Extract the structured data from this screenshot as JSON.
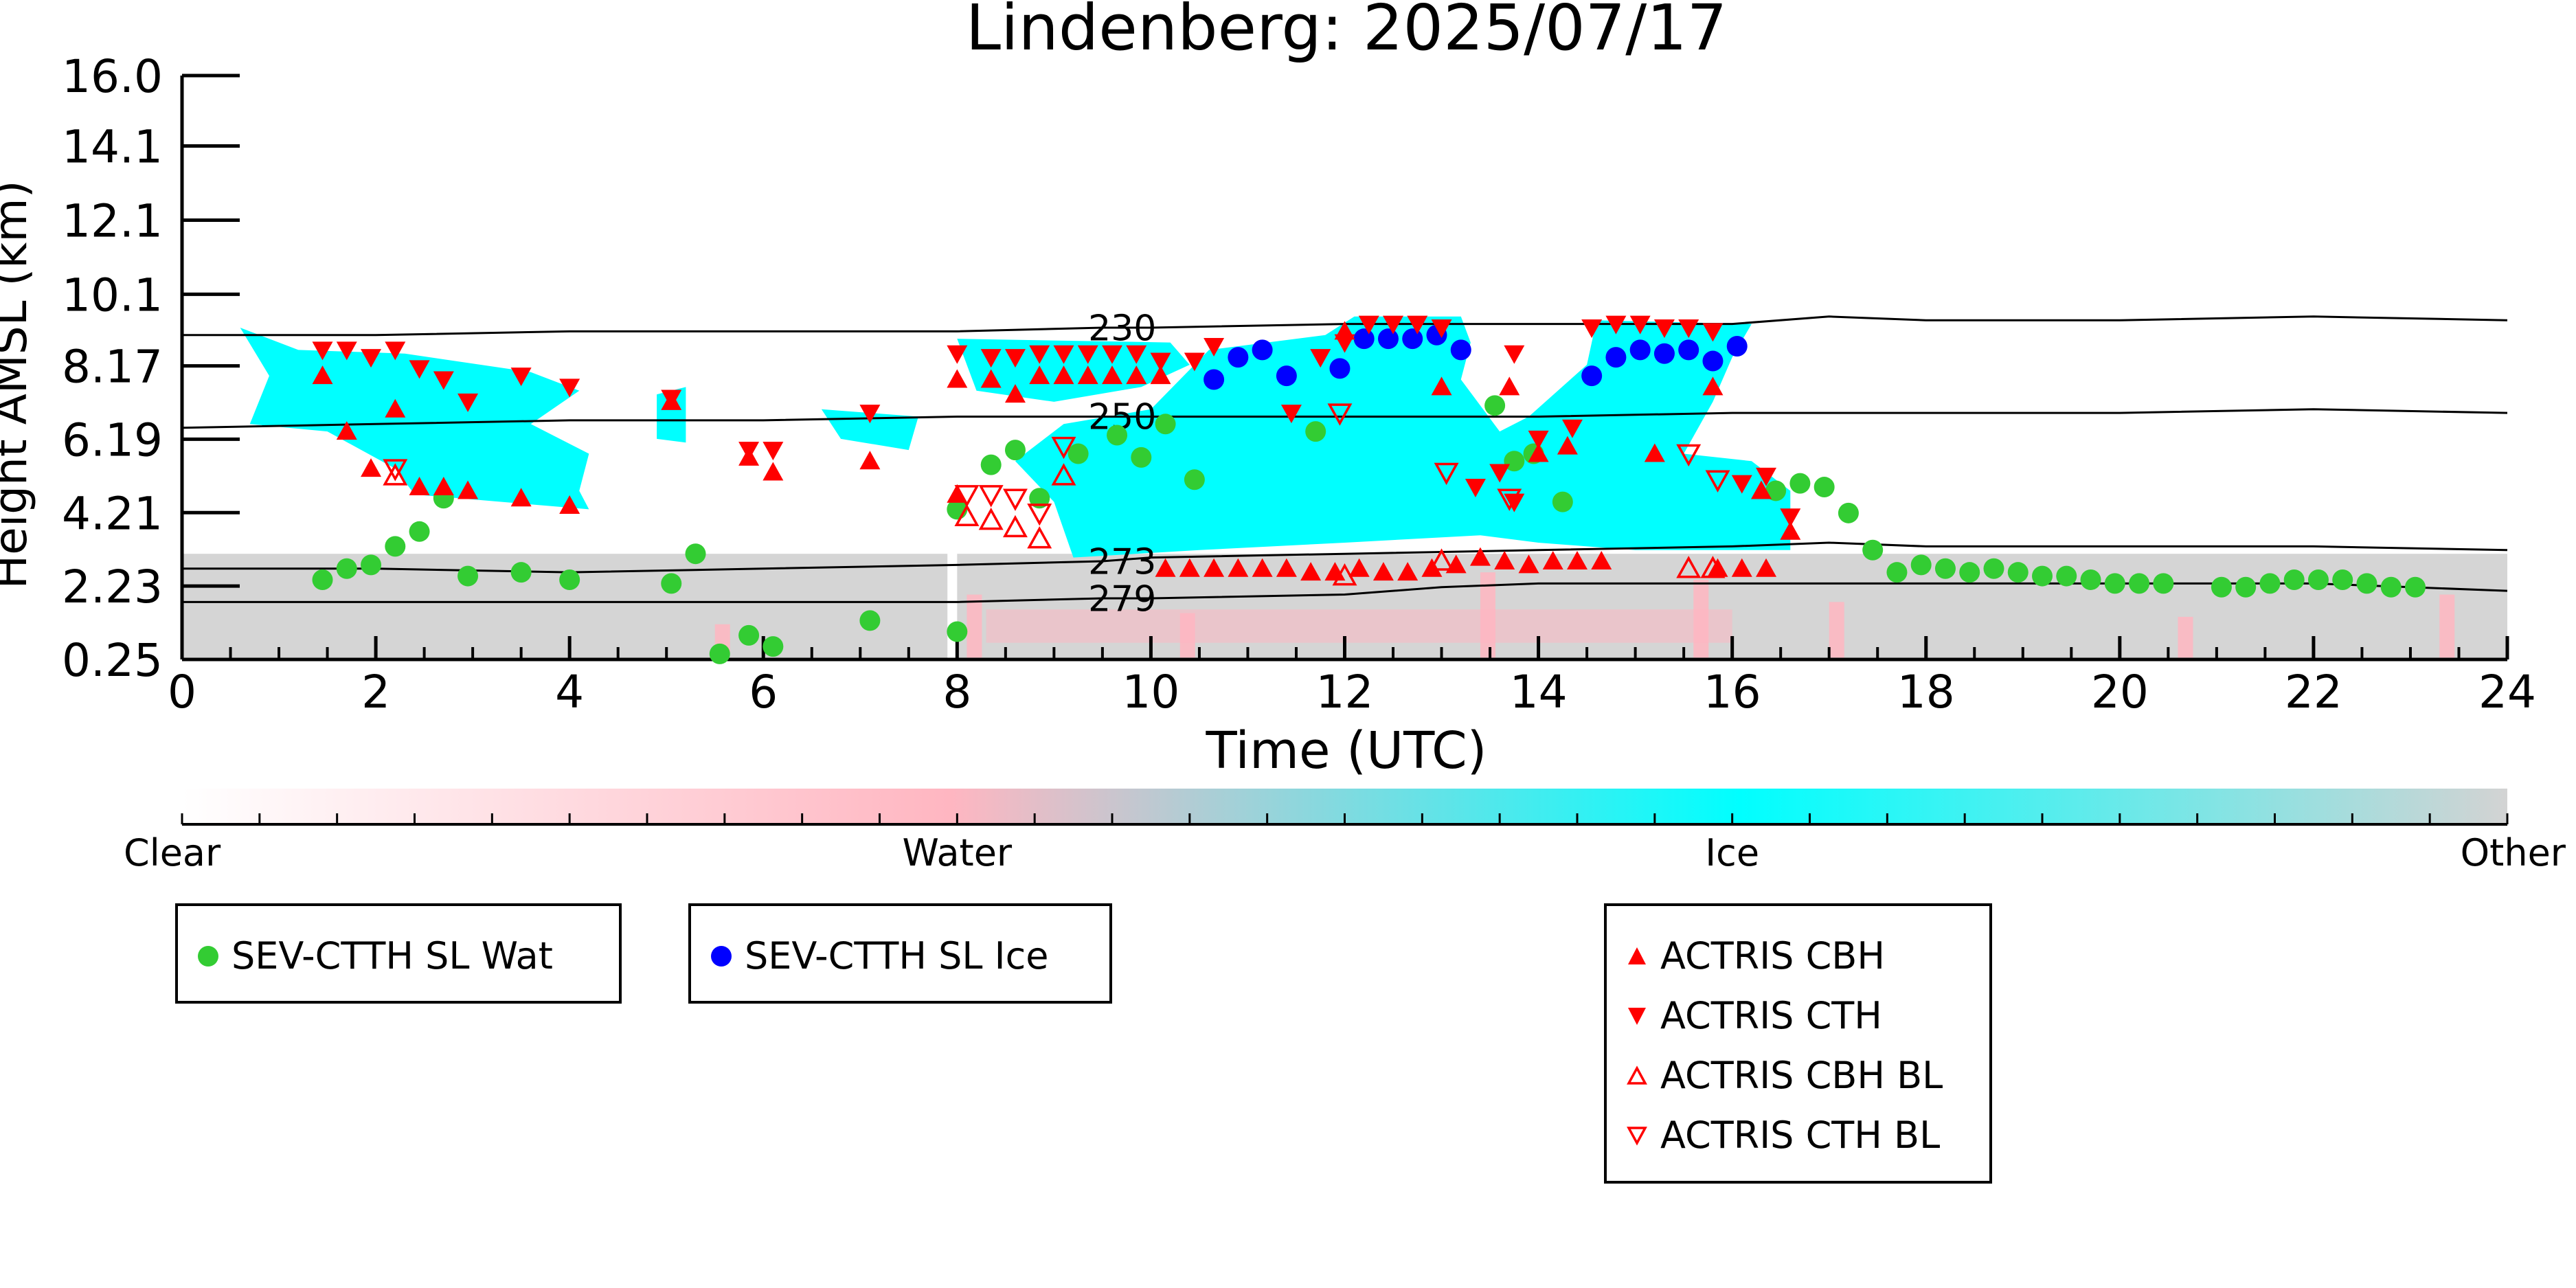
{
  "chart_data": {
    "type": "scatter",
    "title": "Lindenberg: 2025/07/17",
    "xlabel": "Time (UTC)",
    "ylabel": "Height AMSL (km)",
    "xlim": [
      0,
      24
    ],
    "ylim": [
      0.25,
      16.0
    ],
    "x_ticks": [
      "0",
      "2",
      "4",
      "6",
      "8",
      "10",
      "12",
      "14",
      "16",
      "18",
      "20",
      "22",
      "24"
    ],
    "y_ticks": [
      "0.25",
      "2.23",
      "4.21",
      "6.19",
      "8.17",
      "10.1",
      "12.1",
      "14.1",
      "16.0"
    ],
    "colorbar": {
      "labels": [
        "Clear",
        "Water",
        "Ice",
        "Other"
      ],
      "colors": [
        "#ffffff",
        "#ffb6c1",
        "#00ffff",
        "#d3d3d3"
      ]
    },
    "isotherms": [
      {
        "label": "230",
        "x": [
          0,
          2,
          4,
          6,
          8,
          9.5,
          10,
          12,
          14,
          16,
          17,
          18,
          20,
          22,
          24
        ],
        "y": [
          9.0,
          9.0,
          9.1,
          9.1,
          9.1,
          9.2,
          9.2,
          9.3,
          9.3,
          9.3,
          9.5,
          9.4,
          9.4,
          9.5,
          9.4
        ]
      },
      {
        "label": "250",
        "x": [
          0,
          2,
          4,
          6,
          8,
          9.5,
          10,
          12,
          14,
          16,
          18,
          20,
          22,
          24
        ],
        "y": [
          6.5,
          6.6,
          6.7,
          6.7,
          6.8,
          6.8,
          6.8,
          6.8,
          6.8,
          6.9,
          6.9,
          6.9,
          7.0,
          6.9
        ]
      },
      {
        "label": "273",
        "x": [
          0,
          2,
          4,
          6,
          8,
          9.5,
          10,
          12,
          14,
          16,
          17,
          18,
          20,
          22,
          24
        ],
        "y": [
          2.7,
          2.7,
          2.6,
          2.7,
          2.8,
          2.9,
          3.0,
          3.1,
          3.2,
          3.3,
          3.4,
          3.3,
          3.3,
          3.3,
          3.2
        ]
      },
      {
        "label": "279",
        "x": [
          0,
          2,
          4,
          6,
          8,
          9.5,
          10,
          12,
          13,
          14,
          16,
          18,
          20,
          22,
          23,
          24
        ],
        "y": [
          1.8,
          1.8,
          1.8,
          1.8,
          1.8,
          1.9,
          1.9,
          2.0,
          2.2,
          2.3,
          2.3,
          2.3,
          2.3,
          2.3,
          2.2,
          2.1
        ]
      }
    ],
    "series": [
      {
        "name": "SEV-CTTH SL Wat",
        "color": "#33cc33",
        "marker": "circle",
        "points": [
          [
            1.45,
            2.4
          ],
          [
            1.7,
            2.7
          ],
          [
            1.95,
            2.8
          ],
          [
            2.2,
            3.3
          ],
          [
            2.45,
            3.7
          ],
          [
            2.7,
            4.6
          ],
          [
            2.95,
            2.5
          ],
          [
            3.5,
            2.6
          ],
          [
            4.0,
            2.4
          ],
          [
            5.05,
            2.3
          ],
          [
            5.3,
            3.1
          ],
          [
            5.55,
            0.4
          ],
          [
            5.85,
            0.9
          ],
          [
            6.1,
            0.6
          ],
          [
            7.1,
            1.3
          ],
          [
            8.0,
            4.3
          ],
          [
            8.0,
            1.0
          ],
          [
            8.35,
            5.5
          ],
          [
            8.6,
            5.9
          ],
          [
            8.85,
            4.6
          ],
          [
            9.25,
            5.8
          ],
          [
            9.65,
            6.3
          ],
          [
            9.9,
            5.7
          ],
          [
            10.15,
            6.6
          ],
          [
            10.45,
            5.1
          ],
          [
            11.7,
            6.4
          ],
          [
            13.55,
            7.1
          ],
          [
            13.75,
            5.6
          ],
          [
            13.95,
            5.8
          ],
          [
            14.25,
            4.5
          ],
          [
            16.45,
            4.8
          ],
          [
            16.7,
            5.0
          ],
          [
            16.95,
            4.9
          ],
          [
            17.2,
            4.2
          ],
          [
            17.45,
            3.2
          ],
          [
            17.7,
            2.6
          ],
          [
            17.95,
            2.8
          ],
          [
            18.2,
            2.7
          ],
          [
            18.45,
            2.6
          ],
          [
            18.7,
            2.7
          ],
          [
            18.95,
            2.6
          ],
          [
            19.2,
            2.5
          ],
          [
            19.45,
            2.5
          ],
          [
            19.7,
            2.4
          ],
          [
            19.95,
            2.3
          ],
          [
            20.2,
            2.3
          ],
          [
            20.45,
            2.3
          ],
          [
            21.05,
            2.2
          ],
          [
            21.3,
            2.2
          ],
          [
            21.55,
            2.3
          ],
          [
            21.8,
            2.4
          ],
          [
            22.05,
            2.4
          ],
          [
            22.3,
            2.4
          ],
          [
            22.55,
            2.3
          ],
          [
            22.8,
            2.2
          ],
          [
            23.05,
            2.2
          ]
        ]
      },
      {
        "name": "SEV-CTTH SL Ice",
        "color": "#0000ff",
        "marker": "circle",
        "points": [
          [
            10.65,
            7.8
          ],
          [
            10.9,
            8.4
          ],
          [
            11.15,
            8.6
          ],
          [
            11.4,
            7.9
          ],
          [
            11.95,
            8.1
          ],
          [
            12.2,
            8.9
          ],
          [
            12.45,
            8.9
          ],
          [
            12.7,
            8.9
          ],
          [
            12.95,
            9.0
          ],
          [
            13.2,
            8.6
          ],
          [
            14.55,
            7.9
          ],
          [
            14.8,
            8.4
          ],
          [
            15.05,
            8.6
          ],
          [
            15.3,
            8.5
          ],
          [
            15.55,
            8.6
          ],
          [
            15.8,
            8.3
          ],
          [
            16.05,
            8.7
          ]
        ]
      },
      {
        "name": "ACTRIS CBH",
        "color": "#ff0000",
        "marker": "triangle-up",
        "filled": true,
        "points": [
          [
            1.45,
            7.9
          ],
          [
            1.7,
            6.4
          ],
          [
            1.95,
            5.4
          ],
          [
            2.2,
            7.0
          ],
          [
            2.45,
            4.9
          ],
          [
            2.7,
            4.9
          ],
          [
            2.95,
            4.8
          ],
          [
            3.5,
            4.6
          ],
          [
            4.0,
            4.4
          ],
          [
            5.05,
            7.2
          ],
          [
            5.85,
            5.7
          ],
          [
            6.1,
            5.3
          ],
          [
            7.1,
            5.6
          ],
          [
            8.0,
            7.8
          ],
          [
            8.0,
            4.7
          ],
          [
            8.35,
            7.8
          ],
          [
            8.6,
            7.4
          ],
          [
            8.85,
            7.9
          ],
          [
            9.1,
            7.9
          ],
          [
            9.35,
            7.9
          ],
          [
            9.6,
            7.9
          ],
          [
            9.85,
            7.9
          ],
          [
            10.1,
            7.9
          ],
          [
            10.15,
            2.7
          ],
          [
            10.4,
            2.7
          ],
          [
            10.65,
            2.7
          ],
          [
            10.9,
            2.7
          ],
          [
            11.15,
            2.7
          ],
          [
            11.4,
            2.7
          ],
          [
            11.65,
            2.6
          ],
          [
            11.9,
            2.6
          ],
          [
            12.15,
            2.7
          ],
          [
            12.4,
            2.6
          ],
          [
            12.65,
            2.6
          ],
          [
            12.9,
            2.7
          ],
          [
            13.15,
            2.8
          ],
          [
            13.4,
            3.0
          ],
          [
            13.65,
            2.9
          ],
          [
            13.9,
            2.8
          ],
          [
            14.15,
            2.9
          ],
          [
            14.4,
            2.9
          ],
          [
            14.65,
            2.9
          ],
          [
            12.0,
            9.1
          ],
          [
            13.0,
            7.6
          ],
          [
            13.7,
            7.6
          ],
          [
            14.0,
            5.8
          ],
          [
            14.3,
            6.0
          ],
          [
            15.2,
            5.8
          ],
          [
            15.8,
            7.6
          ],
          [
            16.3,
            4.8
          ],
          [
            16.6,
            3.7
          ],
          [
            15.85,
            2.7
          ],
          [
            16.1,
            2.7
          ],
          [
            16.35,
            2.7
          ]
        ]
      },
      {
        "name": "ACTRIS CTH",
        "color": "#ff0000",
        "marker": "triangle-down",
        "filled": true,
        "points": [
          [
            1.45,
            8.6
          ],
          [
            1.7,
            8.6
          ],
          [
            1.95,
            8.4
          ],
          [
            2.2,
            8.6
          ],
          [
            2.45,
            8.1
          ],
          [
            2.7,
            7.8
          ],
          [
            2.95,
            7.2
          ],
          [
            3.5,
            7.9
          ],
          [
            4.0,
            7.6
          ],
          [
            5.05,
            7.3
          ],
          [
            5.85,
            5.9
          ],
          [
            6.1,
            5.9
          ],
          [
            7.1,
            6.9
          ],
          [
            8.0,
            8.5
          ],
          [
            8.35,
            8.4
          ],
          [
            8.6,
            8.4
          ],
          [
            8.85,
            8.5
          ],
          [
            9.1,
            8.5
          ],
          [
            9.35,
            8.5
          ],
          [
            9.6,
            8.5
          ],
          [
            9.85,
            8.5
          ],
          [
            10.1,
            8.3
          ],
          [
            10.45,
            8.3
          ],
          [
            10.65,
            8.7
          ],
          [
            11.45,
            6.9
          ],
          [
            11.75,
            8.4
          ],
          [
            12.0,
            8.8
          ],
          [
            12.25,
            9.3
          ],
          [
            12.5,
            9.3
          ],
          [
            12.75,
            9.3
          ],
          [
            13.0,
            9.2
          ],
          [
            13.35,
            4.9
          ],
          [
            13.6,
            5.3
          ],
          [
            13.75,
            8.5
          ],
          [
            13.75,
            4.5
          ],
          [
            14.0,
            6.2
          ],
          [
            14.35,
            6.5
          ],
          [
            14.55,
            9.2
          ],
          [
            14.8,
            9.3
          ],
          [
            15.05,
            9.3
          ],
          [
            15.3,
            9.2
          ],
          [
            15.55,
            9.2
          ],
          [
            15.8,
            9.1
          ],
          [
            16.1,
            5.0
          ],
          [
            16.35,
            5.2
          ],
          [
            16.6,
            4.1
          ]
        ]
      },
      {
        "name": "ACTRIS CBH BL",
        "color": "#ff0000",
        "marker": "triangle-up",
        "filled": false,
        "points": [
          [
            2.2,
            5.2
          ],
          [
            8.1,
            4.1
          ],
          [
            8.35,
            4.0
          ],
          [
            8.6,
            3.8
          ],
          [
            8.85,
            3.5
          ],
          [
            9.1,
            5.2
          ],
          [
            12.0,
            2.5
          ],
          [
            13.0,
            2.9
          ],
          [
            15.55,
            2.7
          ],
          [
            15.8,
            2.7
          ]
        ]
      },
      {
        "name": "ACTRIS CTH BL",
        "color": "#ff0000",
        "marker": "triangle-down",
        "filled": false,
        "points": [
          [
            2.2,
            5.4
          ],
          [
            8.1,
            4.7
          ],
          [
            8.35,
            4.7
          ],
          [
            8.6,
            4.6
          ],
          [
            8.85,
            4.2
          ],
          [
            9.1,
            6.0
          ],
          [
            11.95,
            6.9
          ],
          [
            13.05,
            5.3
          ],
          [
            13.7,
            4.6
          ],
          [
            15.55,
            5.8
          ],
          [
            15.85,
            5.1
          ]
        ]
      }
    ]
  }
}
